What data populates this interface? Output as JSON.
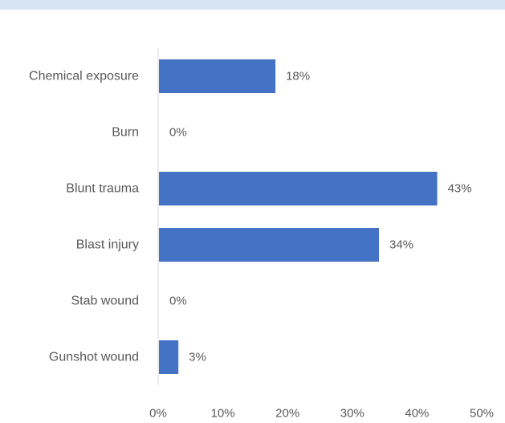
{
  "chart_data": {
    "type": "bar",
    "orientation": "horizontal",
    "categories": [
      "Chemical exposure",
      "Burn",
      "Blunt trauma",
      "Blast injury",
      "Stab wound",
      "Gunshot wound"
    ],
    "values": [
      18,
      0,
      43,
      34,
      0,
      3
    ],
    "value_labels": [
      "18%",
      "0%",
      "43%",
      "34%",
      "0%",
      "3%"
    ],
    "xlim": [
      0,
      50
    ],
    "xticks": [
      0,
      10,
      20,
      30,
      40,
      50
    ],
    "xtick_labels": [
      "0%",
      "10%",
      "20%",
      "30%",
      "40%",
      "50%"
    ],
    "bar_color": "#4472c4",
    "grid": false,
    "legend": "none"
  }
}
